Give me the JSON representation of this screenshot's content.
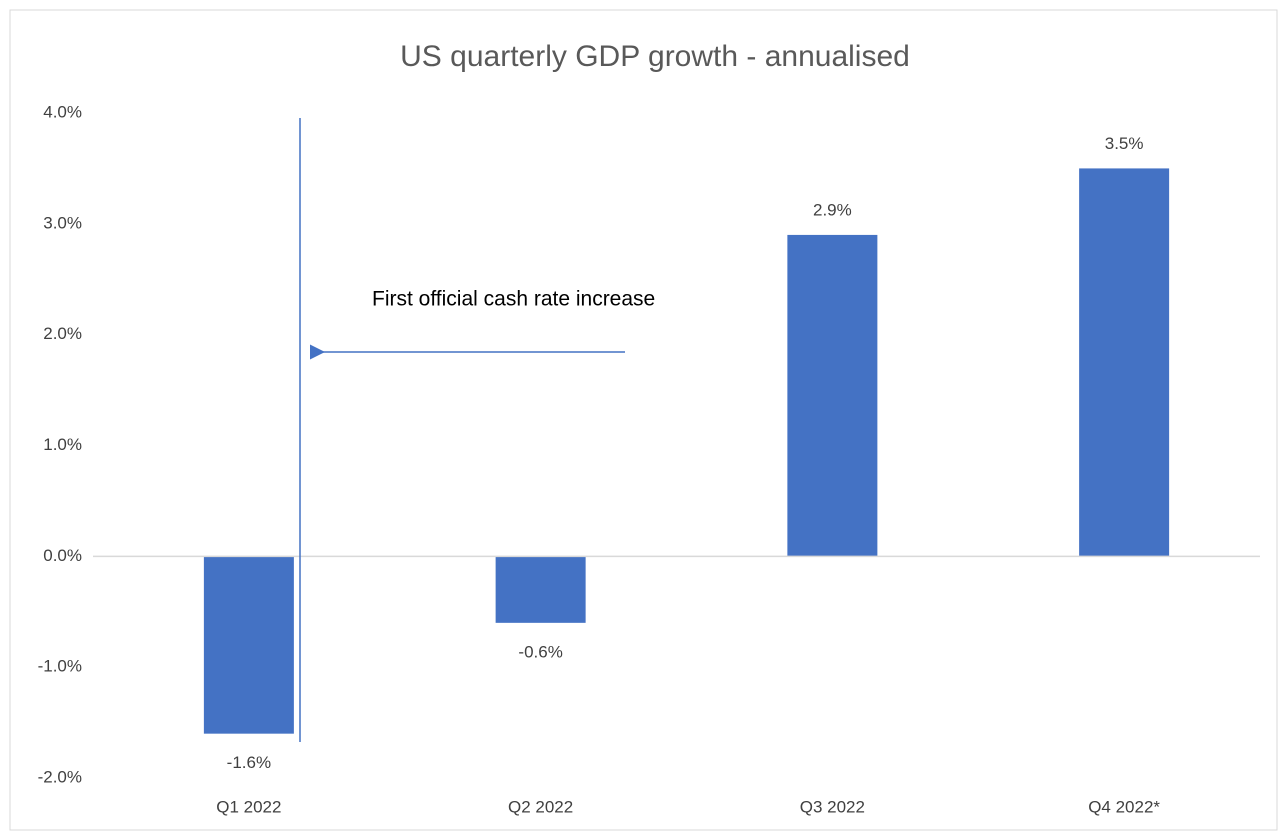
{
  "chart_data": {
    "type": "bar",
    "title": "US quarterly GDP growth - annualised",
    "categories": [
      "Q1 2022",
      "Q2 2022",
      "Q3 2022",
      "Q4 2022*"
    ],
    "values": [
      -1.6,
      -0.6,
      2.9,
      3.5
    ],
    "value_labels": [
      "-1.6%",
      "-0.6%",
      "2.9%",
      "3.5%"
    ],
    "color": "#4472c4",
    "ylim": [
      -2,
      4
    ],
    "yticks": [
      {
        "value": -2,
        "label": "-2.0%"
      },
      {
        "value": -1,
        "label": "-1.0%"
      },
      {
        "value": 0,
        "label": "0.0%"
      },
      {
        "value": 1,
        "label": "1.0%"
      },
      {
        "value": 2,
        "label": "2.0%"
      },
      {
        "value": 3,
        "label": "3.0%"
      },
      {
        "value": 4,
        "label": "4.0%"
      }
    ],
    "grid": false,
    "annotation": "First official cash rate increase"
  }
}
